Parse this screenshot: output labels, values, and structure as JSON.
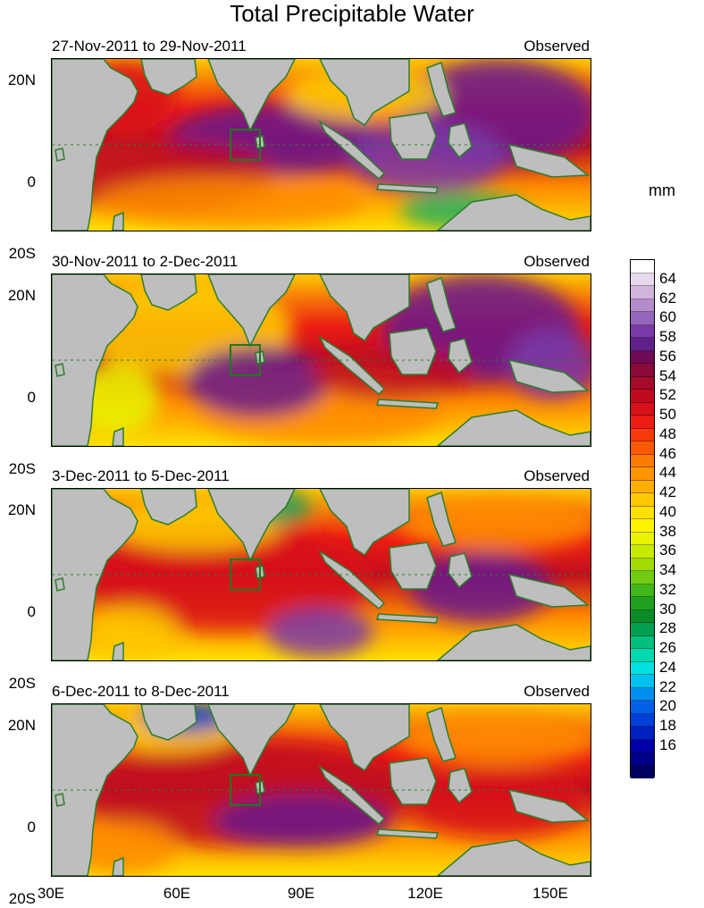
{
  "title": "Total Precipitable Water",
  "unit": "mm",
  "status_label": "Observed",
  "panels": [
    {
      "date_range": "27-Nov-2011 to 29-Nov-2011"
    },
    {
      "date_range": "30-Nov-2011 to 2-Dec-2011"
    },
    {
      "date_range": "3-Dec-2011 to 5-Dec-2011"
    },
    {
      "date_range": "6-Dec-2011 to 8-Dec-2011"
    }
  ],
  "lat_labels": [
    "20N",
    "0",
    "20S"
  ],
  "lon_labels": [
    "30E",
    "60E",
    "90E",
    "120E",
    "150E"
  ],
  "colorbar_labels": [
    "64",
    "62",
    "60",
    "58",
    "56",
    "54",
    "52",
    "50",
    "48",
    "46",
    "44",
    "42",
    "40",
    "38",
    "36",
    "34",
    "32",
    "30",
    "28",
    "26",
    "24",
    "22",
    "20",
    "18",
    "16"
  ],
  "colorbar_colors": [
    "#ffffff",
    "#e8d8ec",
    "#d0b4dc",
    "#b48ccc",
    "#9466bc",
    "#7a3aa8",
    "#62208a",
    "#720a56",
    "#8c0a3a",
    "#a60a2a",
    "#c00a1e",
    "#d8101a",
    "#ec1c12",
    "#f83a0a",
    "#fa5a04",
    "#fc7a00",
    "#fd9400",
    "#feae00",
    "#fec800",
    "#fee000",
    "#fef400",
    "#e8f400",
    "#c8ea00",
    "#a0dc00",
    "#70cc10",
    "#40b818",
    "#20a020",
    "#0c8c28",
    "#00a050",
    "#00c080",
    "#00d8b0",
    "#00e0e0",
    "#00c0f0",
    "#0090f0",
    "#0060e8",
    "#0040d8",
    "#0020c0",
    "#0000a8",
    "#000088",
    "#000060"
  ],
  "colors": {
    "land": "#bebebe",
    "coast": "#2e7d2e",
    "box": "#1e7a1e",
    "equator": "#2e7d2e"
  }
}
